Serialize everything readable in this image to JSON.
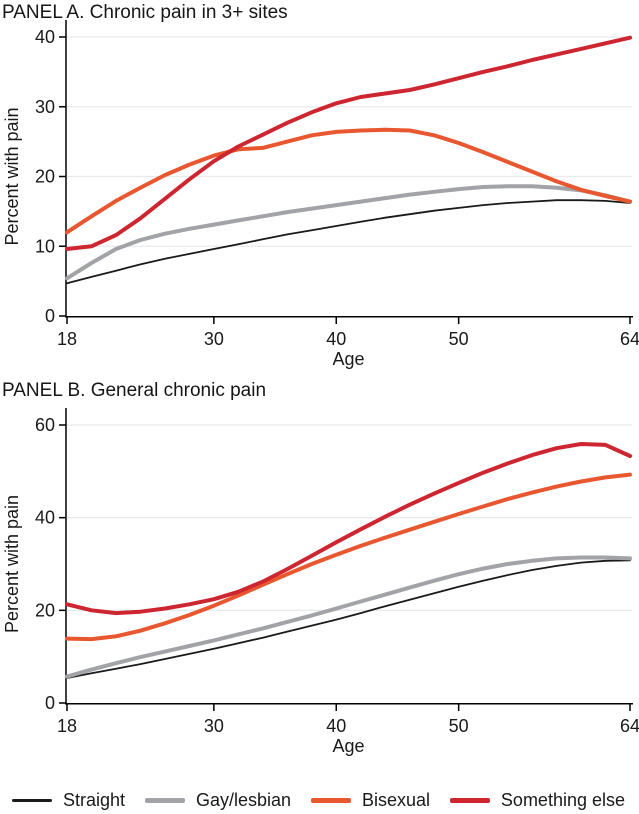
{
  "chart_data": [
    {
      "type": "line",
      "title": "PANEL A. Chronic pain in 3+ sites",
      "xlabel": "Age",
      "ylabel": "Percent with pain",
      "xlim": [
        18,
        64
      ],
      "ylim": [
        0,
        40
      ],
      "xticks": [
        18,
        30,
        40,
        50,
        64
      ],
      "yticks": [
        0,
        10,
        20,
        30,
        40
      ],
      "grid": "horizontal",
      "grid_color": "#e8ebed",
      "x": [
        18,
        20,
        22,
        24,
        26,
        28,
        30,
        32,
        34,
        36,
        38,
        40,
        42,
        44,
        46,
        48,
        50,
        52,
        54,
        56,
        58,
        60,
        62,
        64
      ],
      "series": [
        {
          "name": "Straight",
          "color": "#1a1a1a",
          "stroke_width": 1.8,
          "values": [
            4.7,
            5.6,
            6.5,
            7.4,
            8.2,
            8.9,
            9.6,
            10.3,
            11.0,
            11.7,
            12.3,
            12.9,
            13.5,
            14.1,
            14.6,
            15.1,
            15.5,
            15.9,
            16.2,
            16.4,
            16.6,
            16.6,
            16.5,
            16.2
          ]
        },
        {
          "name": "Gay/lesbian",
          "color": "#a1a3a6",
          "stroke_width": 4,
          "values": [
            5.4,
            7.6,
            9.6,
            10.9,
            11.8,
            12.5,
            13.1,
            13.7,
            14.3,
            14.9,
            15.4,
            15.9,
            16.4,
            16.9,
            17.4,
            17.8,
            18.2,
            18.5,
            18.6,
            18.6,
            18.4,
            18.0,
            17.3,
            16.4
          ]
        },
        {
          "name": "Bisexual",
          "color": "#e8572f",
          "stroke_width": 4,
          "values": [
            12.0,
            14.3,
            16.5,
            18.4,
            20.2,
            21.7,
            23.0,
            23.9,
            24.1,
            25.0,
            25.9,
            26.4,
            26.6,
            26.7,
            26.6,
            25.9,
            24.8,
            23.5,
            22.1,
            20.7,
            19.3,
            18.1,
            17.2,
            16.4
          ]
        },
        {
          "name": "Something else",
          "color": "#cd2630",
          "stroke_width": 4,
          "values": [
            9.6,
            10.0,
            11.6,
            14.0,
            16.8,
            19.6,
            22.2,
            24.3,
            26.0,
            27.7,
            29.2,
            30.5,
            31.4,
            31.9,
            32.4,
            33.2,
            34.1,
            35.0,
            35.8,
            36.7,
            37.5,
            38.3,
            39.1,
            39.9
          ]
        }
      ]
    },
    {
      "type": "line",
      "title": "PANEL B. General chronic pain",
      "xlabel": "Age",
      "ylabel": "Percent with pain",
      "xlim": [
        18,
        64
      ],
      "ylim": [
        0,
        60
      ],
      "xticks": [
        18,
        30,
        40,
        50,
        64
      ],
      "yticks": [
        0,
        20,
        40,
        60
      ],
      "grid": "horizontal",
      "grid_color": "#e8ebed",
      "x": [
        18,
        20,
        22,
        24,
        26,
        28,
        30,
        32,
        34,
        36,
        38,
        40,
        42,
        44,
        46,
        48,
        50,
        52,
        54,
        56,
        58,
        60,
        62,
        64
      ],
      "series": [
        {
          "name": "Straight",
          "color": "#1a1a1a",
          "stroke_width": 1.8,
          "values": [
            5.4,
            6.4,
            7.4,
            8.4,
            9.5,
            10.6,
            11.7,
            12.9,
            14.1,
            15.4,
            16.7,
            18.0,
            19.4,
            20.9,
            22.3,
            23.7,
            25.1,
            26.4,
            27.6,
            28.7,
            29.6,
            30.3,
            30.7,
            30.8
          ]
        },
        {
          "name": "Gay/lesbian",
          "color": "#a1a3a6",
          "stroke_width": 4,
          "values": [
            5.7,
            7.2,
            8.6,
            9.9,
            11.1,
            12.3,
            13.5,
            14.8,
            16.1,
            17.5,
            18.9,
            20.4,
            21.9,
            23.4,
            24.9,
            26.4,
            27.8,
            29.0,
            30.0,
            30.7,
            31.2,
            31.4,
            31.4,
            31.2
          ]
        },
        {
          "name": "Bisexual",
          "color": "#e8572f",
          "stroke_width": 4,
          "values": [
            13.9,
            13.8,
            14.4,
            15.6,
            17.2,
            19.0,
            21.0,
            23.2,
            25.5,
            27.8,
            30.0,
            32.0,
            33.9,
            35.7,
            37.4,
            39.1,
            40.8,
            42.4,
            44.0,
            45.4,
            46.7,
            47.8,
            48.7,
            49.3
          ]
        },
        {
          "name": "Something else",
          "color": "#cd2630",
          "stroke_width": 4,
          "values": [
            21.3,
            20.0,
            19.4,
            19.7,
            20.4,
            21.3,
            22.4,
            24.0,
            26.2,
            28.9,
            31.8,
            34.7,
            37.5,
            40.2,
            42.8,
            45.2,
            47.5,
            49.7,
            51.7,
            53.5,
            55.0,
            55.9,
            55.7,
            53.3
          ]
        }
      ]
    }
  ],
  "legend": {
    "items": [
      {
        "label": "Straight",
        "color": "#1a1a1a",
        "swatch_thickness": 3
      },
      {
        "label": "Gay/lesbian",
        "color": "#a1a3a6",
        "swatch_thickness": 5
      },
      {
        "label": "Bisexual",
        "color": "#e8572f",
        "swatch_thickness": 5
      },
      {
        "label": "Something else",
        "color": "#cd2630",
        "swatch_thickness": 5
      }
    ]
  }
}
